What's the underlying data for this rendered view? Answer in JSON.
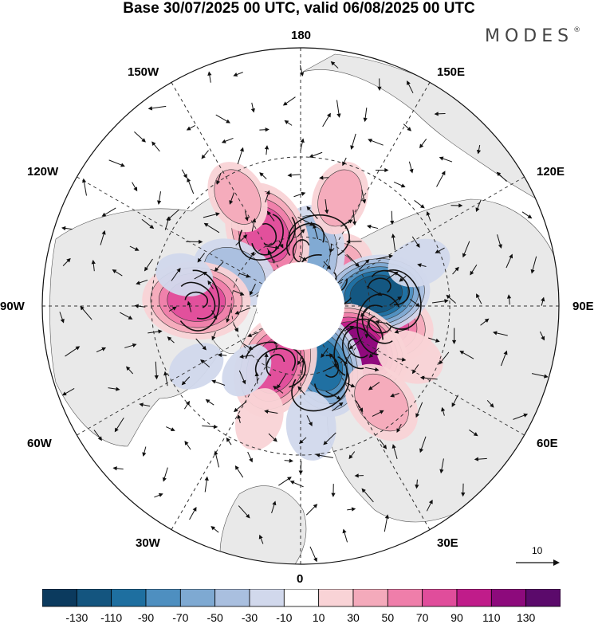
{
  "title": "Base 30/07/2025 00 UTC, valid 06/08/2025 00 UTC",
  "brand": {
    "name": "MODES",
    "mark": "®"
  },
  "longitude_labels": {
    "top": "180",
    "bottom": "0",
    "left": "90W",
    "right": "90E",
    "upper_left_1": "150W",
    "upper_left_2": "120W",
    "upper_right_1": "150E",
    "upper_right_2": "120E",
    "lower_left_1": "60W",
    "lower_left_2": "30W",
    "lower_right_1": "60E",
    "lower_right_2": "30E"
  },
  "reference_vector": {
    "label": "10",
    "magnitude": 10
  },
  "colorbar": {
    "ticks": [
      "-130",
      "-110",
      "-90",
      "-70",
      "-50",
      "-30",
      "-10",
      "10",
      "30",
      "50",
      "70",
      "90",
      "110",
      "130"
    ],
    "colors": [
      "#0b3a5e",
      "#14557f",
      "#1e6fa0",
      "#4e8fc0",
      "#7ea9d2",
      "#a9bfdf",
      "#d1d8ec",
      "#ffffff",
      "#f9d3d6",
      "#f4aabb",
      "#ef7eaa",
      "#e04d9b",
      "#c01c8a",
      "#8d0a7c",
      "#5b0a6b"
    ]
  },
  "anomaly_centers": [
    {
      "lon": 135,
      "colat": 16,
      "value": 60
    },
    {
      "lon": 172,
      "colat": 22,
      "value": -55
    },
    {
      "lon": -155,
      "colat": 34,
      "value": 70
    },
    {
      "lon": -117,
      "colat": 32,
      "value": -40
    },
    {
      "lon": -93,
      "colat": 44,
      "value": 80
    },
    {
      "lon": 77,
      "colat": 35,
      "value": 85
    },
    {
      "lon": 99,
      "colat": 33,
      "value": -115
    },
    {
      "lon": 54,
      "colat": 31,
      "value": 125
    },
    {
      "lon": 20,
      "colat": 27,
      "value": -95
    },
    {
      "lon": -23,
      "colat": 28,
      "value": 80
    },
    {
      "lon": -40,
      "colat": 36,
      "value": -15
    },
    {
      "lon": 40,
      "colat": 52,
      "value": 40
    },
    {
      "lon": 5,
      "colat": 50,
      "value": -25
    },
    {
      "lon": -150,
      "colat": 52,
      "value": 30
    },
    {
      "lon": 160,
      "colat": 48,
      "value": 30
    },
    {
      "lon": 110,
      "colat": 52,
      "value": -20
    },
    {
      "lon": -105,
      "colat": 50,
      "value": -15
    },
    {
      "lon": -60,
      "colat": 50,
      "value": -15
    },
    {
      "lon": -20,
      "colat": 50,
      "value": 20
    },
    {
      "lon": 65,
      "colat": 50,
      "value": 25
    }
  ]
}
